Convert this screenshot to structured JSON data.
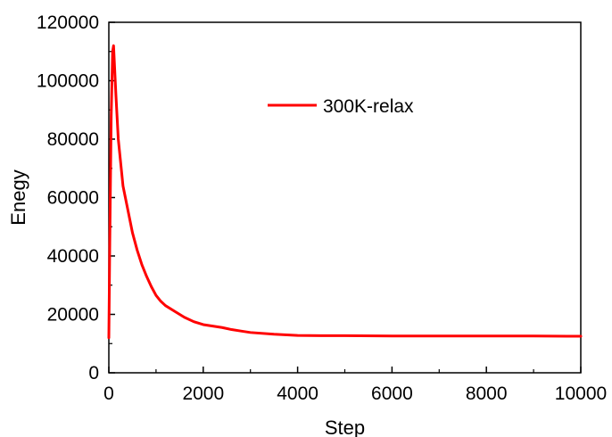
{
  "chart_data": {
    "type": "line",
    "xlabel": "Step",
    "ylabel": "Enegy",
    "xlim": [
      0,
      10000
    ],
    "ylim": [
      0,
      120000
    ],
    "x_ticks": [
      0,
      2000,
      4000,
      6000,
      8000,
      10000
    ],
    "y_ticks": [
      0,
      20000,
      40000,
      60000,
      80000,
      100000,
      120000
    ],
    "grid": false,
    "legend_position": "top-center",
    "series": [
      {
        "name": "300K-relax",
        "color": "#ff0000",
        "x": [
          0,
          20,
          50,
          80,
          100,
          150,
          200,
          300,
          400,
          500,
          600,
          700,
          800,
          900,
          1000,
          1100,
          1200,
          1400,
          1600,
          1800,
          2000,
          2200,
          2400,
          2600,
          2800,
          3000,
          3500,
          4000,
          4500,
          5000,
          6000,
          7000,
          8000,
          9000,
          10000
        ],
        "y": [
          12000,
          45000,
          88000,
          110000,
          112000,
          95000,
          80000,
          64000,
          56000,
          48000,
          42000,
          37000,
          33000,
          29500,
          26500,
          24500,
          23000,
          21000,
          19000,
          17500,
          16500,
          16000,
          15500,
          14800,
          14300,
          13800,
          13200,
          12800,
          12700,
          12700,
          12600,
          12600,
          12600,
          12600,
          12500
        ]
      }
    ]
  }
}
